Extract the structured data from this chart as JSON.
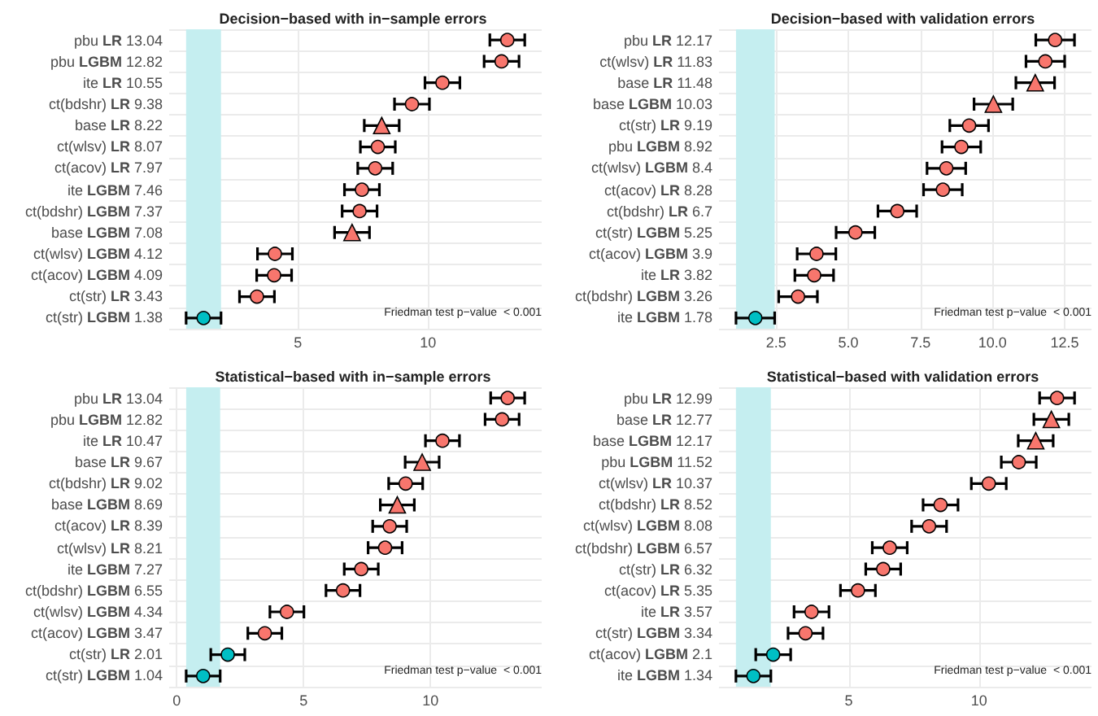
{
  "chart_data": [
    {
      "type": "scatter",
      "title": "Decision−based with in−sample errors",
      "orientation": "horizontal",
      "categories": [
        "pbu LR 13.04",
        "pbu LGBM 12.82",
        "ite LR 10.55",
        "ct(bdshr) LR 9.38",
        "base LR 8.22",
        "ct(wlsv) LR 8.07",
        "ct(acov) LR 7.97",
        "ite LGBM 7.46",
        "ct(bdshr) LGBM 7.37",
        "base LGBM 7.08",
        "ct(wlsv) LGBM 4.12",
        "ct(acov) LGBM 4.09",
        "ct(str) LR 3.43",
        "ct(str) LGBM 1.38"
      ],
      "series": [
        {
          "color": "#f8766d",
          "marker": "circle",
          "values": [
            13.04,
            12.82,
            10.55,
            9.38,
            null,
            8.07,
            7.97,
            7.46,
            7.37,
            null,
            4.12,
            4.09,
            3.43,
            null
          ],
          "errors": [
            0.67,
            0.67,
            0.67,
            0.67,
            null,
            0.67,
            0.67,
            0.67,
            0.67,
            null,
            0.67,
            0.67,
            0.67,
            null
          ]
        },
        {
          "color": "#f8766d",
          "marker": "triangle",
          "values": [
            null,
            null,
            null,
            null,
            8.22,
            null,
            null,
            null,
            null,
            7.08,
            null,
            null,
            null,
            null
          ],
          "errors": [
            null,
            null,
            null,
            null,
            0.67,
            null,
            null,
            null,
            null,
            0.67,
            null,
            null,
            null,
            null
          ]
        },
        {
          "color": "#00bfc4",
          "marker": "circle",
          "values": [
            null,
            null,
            null,
            null,
            null,
            null,
            null,
            null,
            null,
            null,
            null,
            null,
            null,
            1.38
          ],
          "errors": [
            null,
            null,
            null,
            null,
            null,
            null,
            null,
            null,
            null,
            null,
            null,
            null,
            null,
            0.67
          ]
        }
      ],
      "xlim": [
        0.06,
        14.36
      ],
      "xticks": [
        5,
        10
      ],
      "grid": true,
      "bands": [
        {
          "axis": "x",
          "from": 0.71,
          "to": 2.05,
          "color": "#c5eef0"
        }
      ],
      "annotations": [
        "Friedman test p−value  < 0.001"
      ]
    },
    {
      "type": "scatter",
      "title": "Decision−based with validation errors",
      "orientation": "horizontal",
      "categories": [
        "pbu LR 12.17",
        "ct(wlsv) LR 11.83",
        "base LR 11.48",
        "base LGBM 10.03",
        "ct(str) LR 9.19",
        "pbu LGBM 8.92",
        "ct(wlsv) LGBM 8.4",
        "ct(acov) LR 8.28",
        "ct(bdshr) LR 6.7",
        "ct(str) LGBM 5.25",
        "ct(acov) LGBM 3.9",
        "ite LR 3.82",
        "ct(bdshr) LGBM 3.26",
        "ite LGBM 1.78"
      ],
      "series": [
        {
          "color": "#f8766d",
          "marker": "circle",
          "values": [
            12.17,
            11.83,
            null,
            null,
            9.19,
            8.92,
            8.4,
            8.28,
            6.7,
            5.25,
            3.9,
            3.82,
            3.26,
            null
          ],
          "errors": [
            0.67,
            0.67,
            null,
            null,
            0.67,
            0.67,
            0.67,
            0.67,
            0.67,
            0.67,
            0.67,
            0.67,
            0.67,
            null
          ]
        },
        {
          "color": "#f8766d",
          "marker": "triangle",
          "values": [
            null,
            null,
            11.48,
            10.03,
            null,
            null,
            null,
            null,
            null,
            null,
            null,
            null,
            null,
            null
          ],
          "errors": [
            null,
            null,
            0.67,
            0.67,
            null,
            null,
            null,
            null,
            null,
            null,
            null,
            null,
            null,
            null
          ]
        },
        {
          "color": "#00bfc4",
          "marker": "circle",
          "values": [
            null,
            null,
            null,
            null,
            null,
            null,
            null,
            null,
            null,
            null,
            null,
            null,
            null,
            1.78
          ],
          "errors": [
            null,
            null,
            null,
            null,
            null,
            null,
            null,
            null,
            null,
            null,
            null,
            null,
            null,
            0.67
          ]
        }
      ],
      "xlim": [
        0.52,
        13.43
      ],
      "xticks": [
        {
          "value": 2.5,
          "label": "2.5"
        },
        {
          "value": 5,
          "label": "5.0"
        },
        {
          "value": 7.5,
          "label": "7.5"
        },
        {
          "value": 10,
          "label": "10.0"
        },
        {
          "value": 12.5,
          "label": "12.5"
        }
      ],
      "grid": true,
      "bands": [
        {
          "axis": "x",
          "from": 1.11,
          "to": 2.45,
          "color": "#c5eef0"
        }
      ],
      "annotations": [
        "Friedman test p−value  < 0.001"
      ]
    },
    {
      "type": "scatter",
      "title": "Statistical−based with in−sample errors",
      "orientation": "horizontal",
      "categories": [
        "pbu LR 13.04",
        "pbu LGBM 12.82",
        "ite LR 10.47",
        "base LR 9.67",
        "ct(bdshr) LR 9.02",
        "base LGBM 8.69",
        "ct(acov) LR 8.39",
        "ct(wlsv) LR 8.21",
        "ite LGBM 7.27",
        "ct(bdshr) LGBM 6.55",
        "ct(wlsv) LGBM 4.34",
        "ct(acov) LGBM 3.47",
        "ct(str) LR 2.01",
        "ct(str) LGBM 1.04"
      ],
      "series": [
        {
          "color": "#f8766d",
          "marker": "circle",
          "values": [
            13.04,
            12.82,
            10.47,
            null,
            9.02,
            null,
            8.39,
            8.21,
            7.27,
            6.55,
            4.34,
            3.47,
            null,
            null
          ],
          "errors": [
            0.67,
            0.67,
            0.67,
            null,
            0.67,
            null,
            0.67,
            0.67,
            0.67,
            0.67,
            0.67,
            0.67,
            null,
            null
          ]
        },
        {
          "color": "#f8766d",
          "marker": "triangle",
          "values": [
            null,
            null,
            null,
            9.67,
            null,
            8.69,
            null,
            null,
            null,
            null,
            null,
            null,
            null,
            null
          ],
          "errors": [
            null,
            null,
            null,
            0.67,
            null,
            0.67,
            null,
            null,
            null,
            null,
            null,
            null,
            null,
            null
          ]
        },
        {
          "color": "#00bfc4",
          "marker": "circle",
          "values": [
            null,
            null,
            null,
            null,
            null,
            null,
            null,
            null,
            null,
            null,
            null,
            null,
            2.01,
            1.04
          ],
          "errors": [
            null,
            null,
            null,
            null,
            null,
            null,
            null,
            null,
            null,
            null,
            null,
            null,
            0.67,
            0.67
          ]
        }
      ],
      "xlim": [
        -0.3,
        14.38
      ],
      "xticks": [
        0,
        5,
        10
      ],
      "grid": true,
      "bands": [
        {
          "axis": "x",
          "from": 0.37,
          "to": 1.71,
          "color": "#c5eef0"
        }
      ],
      "annotations": [
        "Friedman test p−value  < 0.001"
      ]
    },
    {
      "type": "scatter",
      "title": "Statistical−based with validation errors",
      "orientation": "horizontal",
      "categories": [
        "pbu LR 12.99",
        "base LR 12.77",
        "base LGBM 12.17",
        "pbu LGBM 11.52",
        "ct(wlsv) LR 10.37",
        "ct(bdshr) LR 8.52",
        "ct(wlsv) LGBM 8.08",
        "ct(bdshr) LGBM 6.57",
        "ct(str) LR 6.32",
        "ct(acov) LR 5.35",
        "ite LR 3.57",
        "ct(str) LGBM 3.34",
        "ct(acov) LGBM 2.1",
        "ite LGBM 1.34"
      ],
      "series": [
        {
          "color": "#f8766d",
          "marker": "circle",
          "values": [
            12.99,
            null,
            null,
            11.52,
            10.37,
            8.52,
            8.08,
            6.57,
            6.32,
            5.35,
            3.57,
            3.34,
            null,
            null
          ],
          "errors": [
            0.67,
            null,
            null,
            0.67,
            0.67,
            0.67,
            0.67,
            0.67,
            0.67,
            0.67,
            0.67,
            0.67,
            null,
            null
          ]
        },
        {
          "color": "#f8766d",
          "marker": "triangle",
          "values": [
            null,
            12.77,
            12.17,
            null,
            null,
            null,
            null,
            null,
            null,
            null,
            null,
            null,
            null,
            null
          ],
          "errors": [
            null,
            0.67,
            0.67,
            null,
            null,
            null,
            null,
            null,
            null,
            null,
            null,
            null,
            null,
            null
          ]
        },
        {
          "color": "#00bfc4",
          "marker": "circle",
          "values": [
            null,
            null,
            null,
            null,
            null,
            null,
            null,
            null,
            null,
            null,
            null,
            null,
            2.1,
            1.34
          ],
          "errors": [
            null,
            null,
            null,
            null,
            null,
            null,
            null,
            null,
            null,
            null,
            null,
            null,
            0.67,
            0.67
          ]
        }
      ],
      "xlim": [
        0.02,
        14.31
      ],
      "xticks": [
        5,
        10
      ],
      "grid": true,
      "bands": [
        {
          "axis": "x",
          "from": 0.67,
          "to": 2.01,
          "color": "#c5eef0"
        }
      ],
      "annotations": [
        "Friedman test p−value  < 0.001"
      ]
    }
  ]
}
